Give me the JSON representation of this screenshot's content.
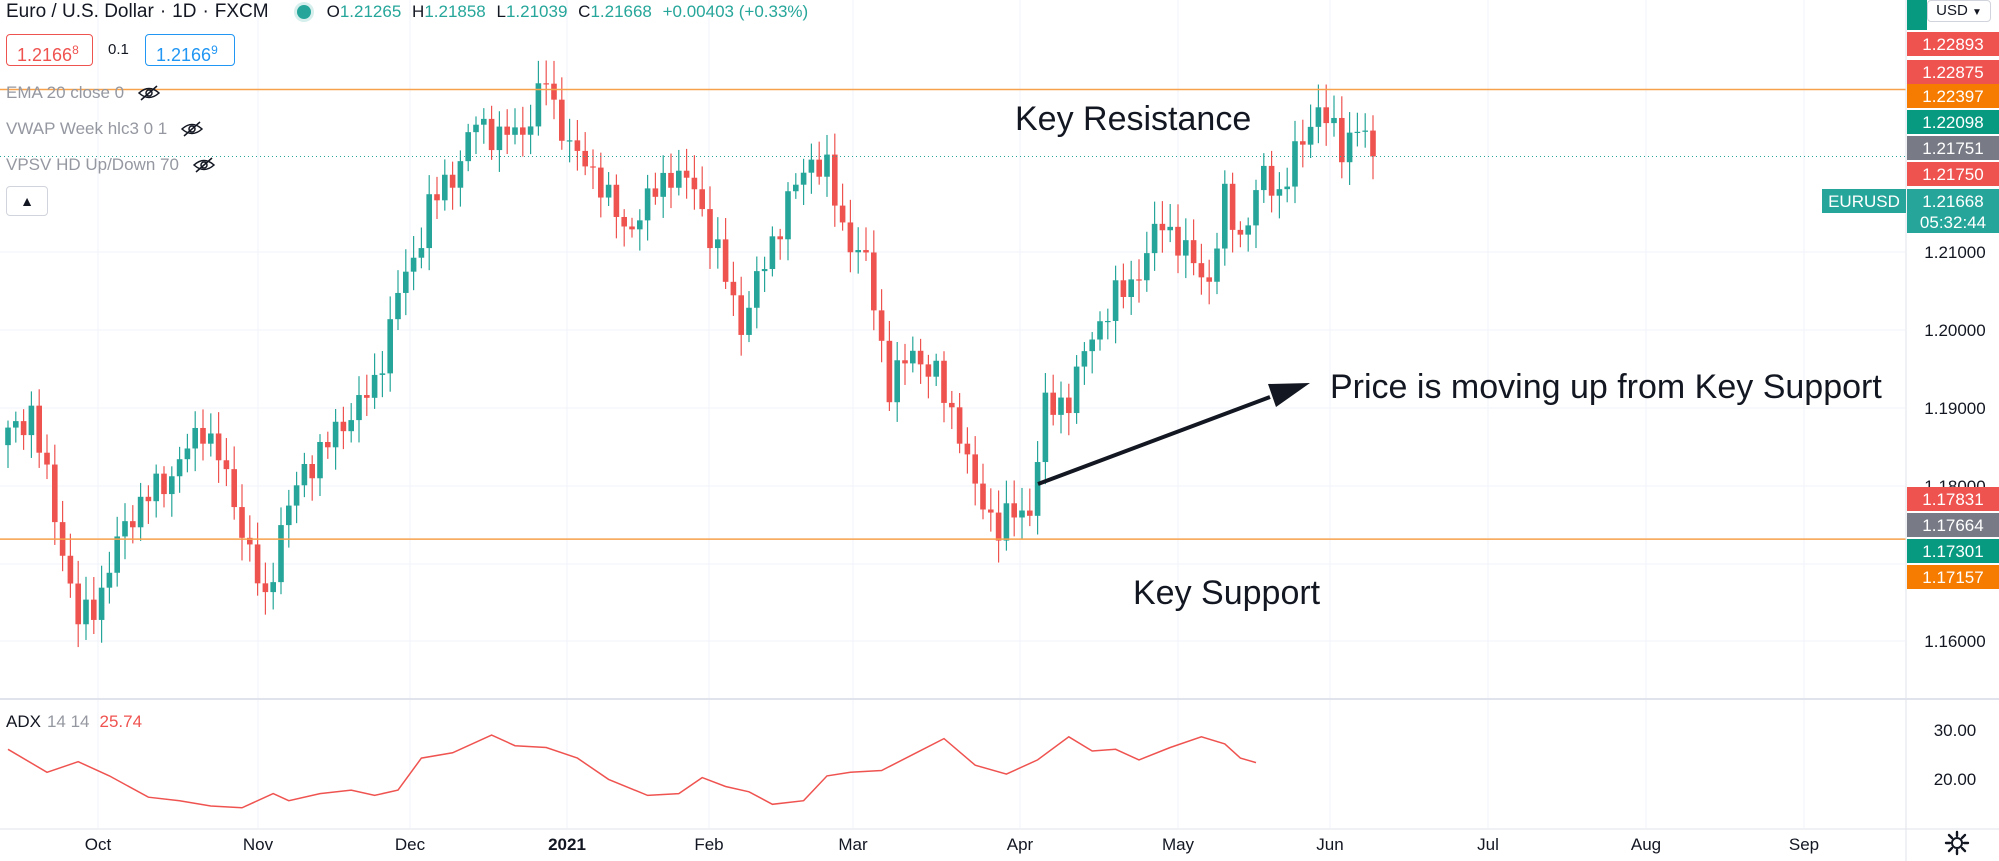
{
  "legend": {
    "symbol": "Euro / U.S. Dollar",
    "interval": "1D",
    "exchange": "FXCM",
    "open_label": "O",
    "open": "1.21265",
    "high_label": "H",
    "high": "1.21858",
    "low_label": "L",
    "low": "1.21039",
    "close_label": "C",
    "close": "1.21668",
    "change": "+0.00403 (+0.33%)"
  },
  "quote": {
    "sell": "1.2166",
    "sell_sup": "8",
    "spread": "0.1",
    "buy": "1.2166",
    "buy_sup": "9"
  },
  "indicators": [
    {
      "label": "EMA 20 close 0"
    },
    {
      "label": "VWAP Week hlc3 0 1"
    },
    {
      "label": "VPSV HD Up/Down 70"
    }
  ],
  "adx": {
    "name": "ADX",
    "params": "14 14",
    "value": "25.74"
  },
  "currency_button": "USD",
  "symbol_tag": "EURUSD",
  "countdown": "05:32:44",
  "price_axis": {
    "ticks": [
      "1.21000",
      "1.20000",
      "1.19000",
      "1.18000",
      "1.16000"
    ],
    "labels": [
      {
        "text": "1.22893",
        "color": "#ef5350"
      },
      {
        "text": "1.22875",
        "color": "#ef5350"
      },
      {
        "text": "1.22397",
        "color": "#f57c00"
      },
      {
        "text": "1.22098",
        "color": "#089981"
      },
      {
        "text": "1.21751",
        "color": "#787b86"
      },
      {
        "text": "1.21750",
        "color": "#ef5350"
      },
      {
        "text": "1.21668",
        "color": "#26a69a"
      },
      {
        "text": "1.17831",
        "color": "#ef5350"
      },
      {
        "text": "1.17664",
        "color": "#787b86"
      },
      {
        "text": "1.17301",
        "color": "#089981"
      },
      {
        "text": "1.17157",
        "color": "#f57c00"
      }
    ]
  },
  "adx_axis": {
    "ticks": [
      "30.00",
      "20.00"
    ]
  },
  "time_axis": {
    "labels": [
      "Oct",
      "Nov",
      "Dec",
      "2021",
      "Feb",
      "Mar",
      "Apr",
      "May",
      "Jun",
      "Jul",
      "Aug",
      "Sep"
    ]
  },
  "annotations": {
    "resistance": "Key Resistance",
    "support": "Key Support",
    "arrow_text": "Price is moving up from Key Support"
  },
  "colors": {
    "up": "#26a69a",
    "down": "#ef5350",
    "level_line": "#f7a14c",
    "adx_line": "#ef5350",
    "grid": "#f0f3fa",
    "text": "#131722",
    "axis_text": "#131722"
  },
  "chart_data": {
    "type": "candlestick",
    "price_range": [
      1.155,
      1.2345
    ],
    "resistance_level": 1.2243,
    "support_level": 1.1731,
    "last_close": 1.21668,
    "anchors": [
      [
        0,
        1.185
      ],
      [
        3,
        1.1875
      ],
      [
        6,
        1.176
      ],
      [
        9,
        1.1635
      ],
      [
        12,
        1.167
      ],
      [
        15,
        1.175
      ],
      [
        18,
        1.178
      ],
      [
        21,
        1.1805
      ],
      [
        25,
        1.186
      ],
      [
        27,
        1.1825
      ],
      [
        30,
        1.1745
      ],
      [
        33,
        1.1655
      ],
      [
        35,
        1.1745
      ],
      [
        38,
        1.181
      ],
      [
        41,
        1.184
      ],
      [
        44,
        1.1875
      ],
      [
        47,
        1.1905
      ],
      [
        50,
        1.201
      ],
      [
        52,
        1.205
      ],
      [
        54,
        1.211
      ],
      [
        57,
        1.2145
      ],
      [
        60,
        1.2205
      ],
      [
        63,
        1.219
      ],
      [
        66,
        1.2195
      ],
      [
        69,
        1.2255
      ],
      [
        70,
        1.222
      ],
      [
        73,
        1.2165
      ],
      [
        76,
        1.214
      ],
      [
        79,
        1.208
      ],
      [
        82,
        1.2115
      ],
      [
        85,
        1.215
      ],
      [
        88,
        1.213
      ],
      [
        91,
        1.2055
      ],
      [
        94,
        1.1975
      ],
      [
        97,
        1.2045
      ],
      [
        100,
        1.2115
      ],
      [
        103,
        1.2165
      ],
      [
        105,
        1.215
      ],
      [
        107,
        1.2085
      ],
      [
        110,
        1.2045
      ],
      [
        113,
        1.1905
      ],
      [
        116,
        1.1945
      ],
      [
        119,
        1.1915
      ],
      [
        122,
        1.1855
      ],
      [
        124,
        1.1785
      ],
      [
        127,
        1.1745
      ],
      [
        129,
        1.176
      ],
      [
        131,
        1.1765
      ],
      [
        133,
        1.188
      ],
      [
        136,
        1.189
      ],
      [
        139,
        1.1965
      ],
      [
        142,
        1.2005
      ],
      [
        145,
        1.2035
      ],
      [
        148,
        1.2095
      ],
      [
        151,
        1.2055
      ],
      [
        154,
        1.2025
      ],
      [
        156,
        1.2115
      ],
      [
        158,
        1.2075
      ],
      [
        161,
        1.2145
      ],
      [
        163,
        1.2125
      ],
      [
        166,
        1.2185
      ],
      [
        168,
        1.2225
      ],
      [
        171,
        1.2175
      ],
      [
        173,
        1.2205
      ],
      [
        175,
        1.2165
      ]
    ],
    "adx_range": [
      9,
      40
    ],
    "adx_anchors": [
      [
        0,
        29.5
      ],
      [
        5,
        23
      ],
      [
        9,
        26
      ],
      [
        13,
        22
      ],
      [
        18,
        16
      ],
      [
        22,
        15
      ],
      [
        26,
        13.5
      ],
      [
        30,
        13
      ],
      [
        34,
        17
      ],
      [
        36,
        15
      ],
      [
        40,
        17
      ],
      [
        44,
        18
      ],
      [
        47,
        16.5
      ],
      [
        50,
        18
      ],
      [
        53,
        27
      ],
      [
        57,
        28.5
      ],
      [
        62,
        33.5
      ],
      [
        65,
        30.5
      ],
      [
        69,
        30
      ],
      [
        73,
        27
      ],
      [
        77,
        21
      ],
      [
        82,
        16.5
      ],
      [
        86,
        17
      ],
      [
        89,
        21.5
      ],
      [
        92,
        19
      ],
      [
        95,
        17.5
      ],
      [
        98,
        14
      ],
      [
        102,
        15
      ],
      [
        105,
        22
      ],
      [
        108,
        23
      ],
      [
        112,
        23.5
      ],
      [
        116,
        28
      ],
      [
        120,
        32.5
      ],
      [
        124,
        25
      ],
      [
        128,
        22.5
      ],
      [
        132,
        26.5
      ],
      [
        136,
        33
      ],
      [
        139,
        29
      ],
      [
        142,
        29.5
      ],
      [
        145,
        26.5
      ],
      [
        149,
        30
      ],
      [
        153,
        33
      ],
      [
        156,
        31
      ],
      [
        158,
        27
      ],
      [
        160,
        25.74
      ]
    ]
  }
}
